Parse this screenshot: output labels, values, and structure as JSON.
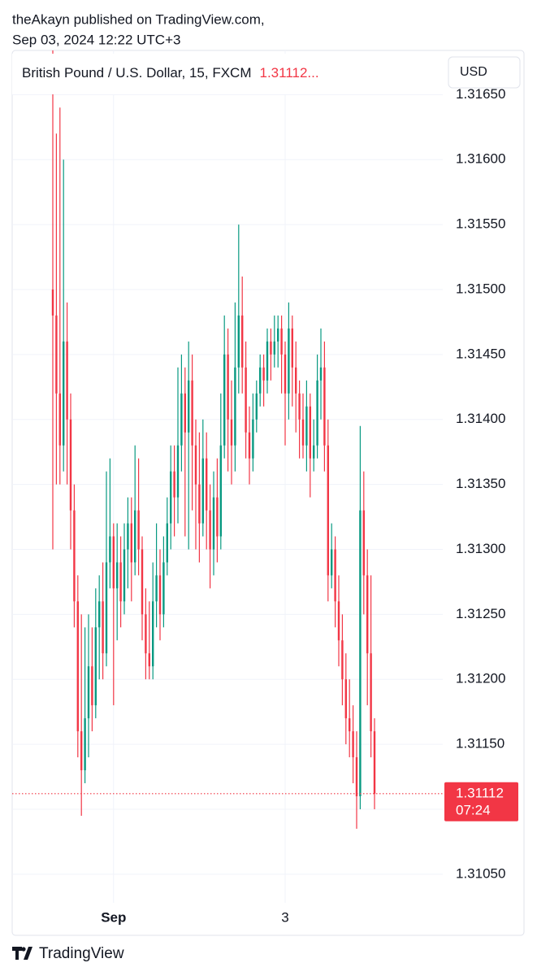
{
  "header": {
    "line1": "theAkayn published on TradingView.com,",
    "line2": "Sep 03, 2024 12:22 UTC+3"
  },
  "footer": {
    "brand": "TradingView"
  },
  "chart_data": {
    "type": "candlestick",
    "title": "British Pound / U.S. Dollar, 15, FXCM",
    "legend_price": "1.31112...",
    "currency": "USD",
    "up_color": "#089981",
    "down_color": "#f23645",
    "categories": [
      null,
      null,
      null,
      null,
      null,
      null,
      null,
      null,
      null,
      null,
      null,
      null,
      null,
      null,
      null,
      null,
      null,
      "Sep",
      null,
      null,
      null,
      null,
      null,
      null,
      null,
      null,
      null,
      null,
      null,
      null,
      null,
      null,
      null,
      null,
      null,
      null,
      null,
      null,
      null,
      null,
      null,
      null,
      null,
      null,
      null,
      null,
      null,
      null,
      null,
      null,
      null,
      null,
      null,
      null,
      null,
      null,
      null,
      null,
      null,
      null,
      null,
      null,
      null,
      null,
      null,
      "3",
      null,
      null,
      null,
      null,
      null,
      null,
      null,
      null,
      null,
      null,
      null,
      null,
      null,
      null,
      null,
      null,
      null,
      null,
      null,
      null,
      null,
      null,
      null,
      null,
      null
    ],
    "open": [
      1.315,
      1.3148,
      1.3142,
      1.3138,
      1.3146,
      1.314,
      1.3133,
      1.3126,
      1.3116,
      1.3113,
      1.3117,
      1.3121,
      1.3118,
      1.3124,
      1.3126,
      1.3122,
      1.3129,
      1.3131,
      1.3127,
      1.3129,
      1.3126,
      1.313,
      1.3132,
      1.3129,
      1.3133,
      1.313,
      1.3125,
      1.3122,
      1.3121,
      1.3126,
      1.3128,
      1.3125,
      1.3129,
      1.3132,
      1.3136,
      1.3134,
      1.3138,
      1.3142,
      1.3139,
      1.3143,
      1.3138,
      1.3135,
      1.3132,
      1.3137,
      1.3133,
      1.313,
      1.3134,
      1.3131,
      1.3138,
      1.3145,
      1.314,
      1.3138,
      1.3144,
      1.3148,
      1.3144,
      1.3139,
      1.3137,
      1.314,
      1.3142,
      1.3144,
      1.3143,
      1.3146,
      1.3145,
      1.3146,
      1.3147,
      1.3145,
      1.3142,
      1.3147,
      1.3144,
      1.3142,
      1.314,
      1.3138,
      1.3141,
      1.3137,
      1.3138,
      1.3143,
      1.3144,
      1.3138,
      1.3128,
      1.313,
      1.3126,
      1.3123,
      1.312,
      1.3117,
      1.3116,
      1.3114,
      1.3111,
      1.3133,
      1.3128,
      1.3122,
      1.3116
    ],
    "high": [
      1.31684,
      1.3162,
      1.3164,
      1.316,
      1.3149,
      1.3142,
      1.3135,
      1.3128,
      1.3125,
      1.3124,
      1.3125,
      1.3124,
      1.3127,
      1.3128,
      1.3129,
      1.3136,
      1.3137,
      1.3132,
      1.3132,
      1.3131,
      1.3132,
      1.3134,
      1.3134,
      1.3138,
      1.3137,
      1.3131,
      1.3127,
      1.3126,
      1.3129,
      1.3132,
      1.313,
      1.3131,
      1.3134,
      1.3138,
      1.3138,
      1.3144,
      1.3145,
      1.3144,
      1.3146,
      1.3145,
      1.314,
      1.3139,
      1.314,
      1.3139,
      1.3135,
      1.3136,
      1.3137,
      1.3142,
      1.3148,
      1.3147,
      1.3143,
      1.3149,
      1.3155,
      1.3151,
      1.3146,
      1.3141,
      1.3142,
      1.3143,
      1.3145,
      1.3145,
      1.3147,
      1.3147,
      1.3148,
      1.3148,
      1.3148,
      1.3146,
      1.3149,
      1.3148,
      1.3146,
      1.3143,
      1.3142,
      1.3143,
      1.3142,
      1.314,
      1.3145,
      1.3147,
      1.3146,
      1.314,
      1.3132,
      1.3131,
      1.3128,
      1.3125,
      1.3122,
      1.312,
      1.3118,
      1.3116,
      1.31395,
      1.3136,
      1.313,
      1.3128,
      1.3117
    ],
    "low": [
      1.313,
      1.3135,
      1.3135,
      1.3136,
      1.3135,
      1.313,
      1.3124,
      1.3114,
      1.31095,
      1.3112,
      1.3114,
      1.3116,
      1.3117,
      1.312,
      1.312,
      1.3121,
      1.3127,
      1.3118,
      1.3123,
      1.3124,
      1.3125,
      1.3127,
      1.3126,
      1.3128,
      1.3128,
      1.3123,
      1.312,
      1.312,
      1.312,
      1.3124,
      1.3123,
      1.3124,
      1.3128,
      1.313,
      1.3131,
      1.3132,
      1.3136,
      1.3131,
      1.313,
      1.3133,
      1.313,
      1.3129,
      1.3131,
      1.313,
      1.3127,
      1.3128,
      1.3129,
      1.313,
      1.3137,
      1.3136,
      1.3135,
      1.3136,
      1.3142,
      1.3142,
      1.3137,
      1.3135,
      1.3136,
      1.3139,
      1.3141,
      1.3141,
      1.3142,
      1.3143,
      1.3144,
      1.3144,
      1.3142,
      1.3138,
      1.314,
      1.3141,
      1.3139,
      1.3137,
      1.3137,
      1.3136,
      1.3134,
      1.3136,
      1.3137,
      1.314,
      1.3136,
      1.3126,
      1.3127,
      1.3124,
      1.3121,
      1.3118,
      1.3115,
      1.3114,
      1.3112,
      1.31085,
      1.311,
      1.3125,
      1.3118,
      1.3114,
      1.311
    ],
    "close": [
      1.3148,
      1.3142,
      1.3138,
      1.3146,
      1.314,
      1.3133,
      1.3126,
      1.3116,
      1.3113,
      1.3117,
      1.3121,
      1.3118,
      1.3124,
      1.3126,
      1.3122,
      1.3129,
      1.3131,
      1.3127,
      1.3129,
      1.3126,
      1.313,
      1.3132,
      1.3129,
      1.3133,
      1.313,
      1.3125,
      1.3122,
      1.3121,
      1.3126,
      1.3128,
      1.3125,
      1.3129,
      1.3132,
      1.3136,
      1.3134,
      1.3138,
      1.3142,
      1.3139,
      1.3143,
      1.3138,
      1.3135,
      1.3132,
      1.3137,
      1.3133,
      1.313,
      1.3134,
      1.3131,
      1.3138,
      1.3145,
      1.314,
      1.3138,
      1.3144,
      1.3148,
      1.3144,
      1.3139,
      1.3137,
      1.314,
      1.3142,
      1.3144,
      1.3143,
      1.3146,
      1.3145,
      1.3146,
      1.3147,
      1.3145,
      1.3142,
      1.3147,
      1.3144,
      1.3142,
      1.314,
      1.3138,
      1.3141,
      1.3137,
      1.3138,
      1.3143,
      1.3144,
      1.3138,
      1.3128,
      1.313,
      1.3126,
      1.3123,
      1.312,
      1.3117,
      1.3116,
      1.3114,
      1.3111,
      1.3133,
      1.3128,
      1.3122,
      1.3116,
      1.31112
    ],
    "ylim": [
      1.31028,
      1.31684
    ],
    "yticks": [
      {
        "value": 1.3105,
        "label": "1.31050"
      },
      {
        "value": 1.311,
        "label": "1.31100"
      },
      {
        "value": 1.3115,
        "label": "1.31150"
      },
      {
        "value": 1.312,
        "label": "1.31200"
      },
      {
        "value": 1.3125,
        "label": "1.31250"
      },
      {
        "value": 1.313,
        "label": "1.31300"
      },
      {
        "value": 1.3135,
        "label": "1.31350"
      },
      {
        "value": 1.314,
        "label": "1.31400"
      },
      {
        "value": 1.3145,
        "label": "1.31450"
      },
      {
        "value": 1.315,
        "label": "1.31500"
      },
      {
        "value": 1.3155,
        "label": "1.31550"
      },
      {
        "value": 1.316,
        "label": "1.31600"
      },
      {
        "value": 1.3165,
        "label": "1.31650"
      }
    ],
    "last_price": {
      "value": 1.31112,
      "label": "1.31112",
      "countdown": "07:24"
    },
    "grid": true
  }
}
